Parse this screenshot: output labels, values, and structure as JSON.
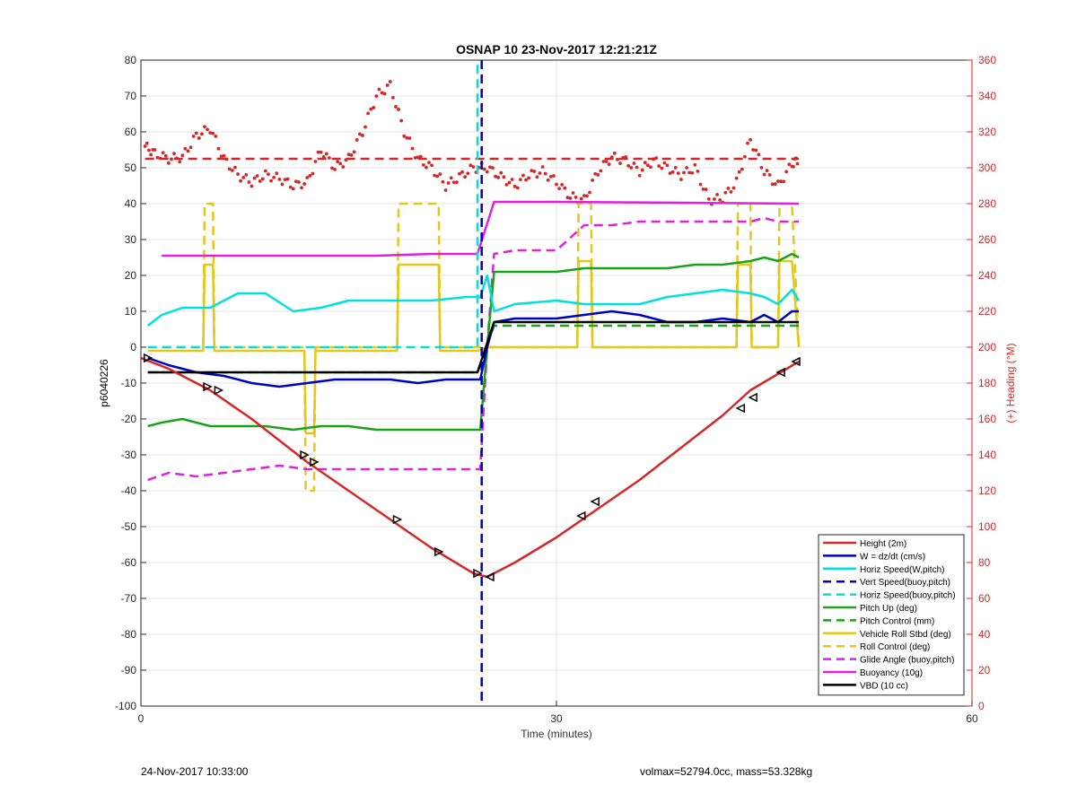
{
  "chart_data": {
    "type": "line",
    "title": "OSNAP 10 23-Nov-2017 12:21:21Z",
    "xlabel": "Time (minutes)",
    "ylabel": "p6040226",
    "y2label": "(+) Heading (°M)",
    "xlim": [
      0,
      60
    ],
    "ylim": [
      -100,
      80
    ],
    "y2lim": [
      0,
      360
    ],
    "xticks": [
      0,
      30,
      60
    ],
    "yticks": [
      -100,
      -90,
      -80,
      -70,
      -60,
      -50,
      -40,
      -30,
      -20,
      -10,
      0,
      10,
      20,
      30,
      40,
      50,
      60,
      70,
      80
    ],
    "y2ticks": [
      0,
      20,
      40,
      60,
      80,
      100,
      120,
      140,
      160,
      180,
      200,
      220,
      240,
      260,
      280,
      300,
      320,
      340,
      360
    ],
    "grid": true,
    "legend_position": "bottom-right",
    "vline_x": 24.5,
    "series": [
      {
        "name": "Height (2m)",
        "color": "#d62728",
        "style": "solid",
        "x": [
          0,
          2,
          5,
          8,
          12,
          15,
          18,
          21,
          24,
          25,
          27,
          30,
          33,
          36,
          39,
          42,
          44,
          47.5
        ],
        "y": [
          -3,
          -6,
          -12,
          -20,
          -32,
          -40,
          -48,
          -56,
          -63,
          -64,
          -60,
          -53,
          -45,
          -37,
          -28,
          -19,
          -12,
          -4
        ]
      },
      {
        "name": "W = dz/dt (cm/s)",
        "color": "#0000c0",
        "style": "solid",
        "x": [
          0.5,
          2,
          4,
          6,
          8,
          10,
          12,
          14,
          16,
          18,
          20,
          22,
          23.5,
          24.5,
          25,
          25.5,
          27,
          30,
          32,
          34,
          36,
          38,
          40,
          42,
          44,
          45,
          46,
          47,
          47.5
        ],
        "y": [
          -3,
          -5,
          -7,
          -8,
          -10,
          -11,
          -10,
          -9,
          -9,
          -9,
          -10,
          -9,
          -9,
          -9,
          0,
          7,
          8,
          8,
          9,
          10,
          9,
          7,
          7,
          8,
          7,
          9,
          7,
          10,
          10
        ]
      },
      {
        "name": "Horiz Speed(W,pitch)",
        "color": "#00e0e0",
        "style": "solid",
        "x": [
          0.5,
          1.5,
          3,
          5,
          7,
          9,
          11,
          13,
          15,
          17,
          19,
          21,
          23.5,
          24.5,
          25,
          25.5,
          27,
          30,
          32,
          34,
          36,
          38,
          40,
          42,
          44,
          45,
          46,
          47,
          47.5
        ],
        "y": [
          6,
          9,
          11,
          11,
          15,
          15,
          10,
          11,
          13,
          13,
          13,
          13,
          14,
          14,
          20,
          10,
          12,
          13,
          12,
          12,
          12,
          14,
          15,
          16,
          15,
          14,
          12,
          16,
          13
        ]
      },
      {
        "name": "Vert Speed(buoy,pitch)",
        "color": "#0000c0",
        "style": "dashed",
        "x": [
          24.6,
          24.6
        ],
        "y": [
          80,
          -100
        ]
      },
      {
        "name": "Horiz Speed(buoy,pitch)",
        "color": "#00e0e0",
        "style": "dashed",
        "x": [
          0.5,
          24.3,
          24.3
        ],
        "y": [
          0,
          0,
          80
        ]
      },
      {
        "name": "Pitch Up (deg)",
        "color": "#1aa31a",
        "style": "solid",
        "x": [
          0.5,
          1.5,
          3,
          5,
          7,
          9,
          11,
          13,
          15,
          17,
          19,
          21,
          23.5,
          24.5,
          25,
          25.5,
          27,
          30,
          32,
          34,
          36,
          38,
          40,
          42,
          44,
          45,
          46,
          47,
          47.5
        ],
        "y": [
          -22,
          -21,
          -20,
          -22,
          -22,
          -22,
          -23,
          -22,
          -22,
          -23,
          -23,
          -23,
          -23,
          -23,
          0,
          21,
          21,
          21,
          22,
          22,
          22,
          22,
          23,
          23,
          24,
          25,
          24,
          26,
          25
        ]
      },
      {
        "name": "Pitch Control (mm)",
        "color": "#1aa31a",
        "style": "dashed",
        "x": [
          0.5,
          24.3,
          25.5,
          47.5
        ],
        "y": [
          -7,
          -7,
          6,
          6
        ]
      },
      {
        "name": "Vehicle Roll Stbd (deg)",
        "color": "#e6c619",
        "style": "solid",
        "x": [
          0.5,
          4.5,
          4.6,
          5.2,
          5.3,
          11.8,
          11.9,
          12.5,
          12.6,
          18.5,
          18.6,
          21.5,
          21.6,
          24.3,
          25,
          31.5,
          31.6,
          32.5,
          32.6,
          43,
          43.1,
          44,
          44.1,
          46,
          46.1,
          47,
          47.5
        ],
        "y": [
          -1,
          -1,
          23,
          23,
          -1,
          -1,
          -24,
          -24,
          -1,
          -1,
          23,
          23,
          -1,
          -1,
          0,
          0,
          24,
          24,
          0,
          0,
          23,
          23,
          0,
          0,
          24,
          24,
          0
        ]
      },
      {
        "name": "Roll Control (deg)",
        "color": "#e6c619",
        "style": "dashed",
        "x": [
          0.5,
          4.5,
          4.6,
          5.2,
          5.3,
          11.8,
          11.9,
          12.5,
          12.6,
          18.5,
          18.6,
          21.5,
          21.6,
          24.3,
          25,
          31.5,
          31.6,
          32.5,
          32.6,
          43,
          43.1,
          44,
          44.1,
          46,
          46.1,
          47,
          47.5
        ],
        "y": [
          0,
          0,
          40,
          40,
          0,
          0,
          -40,
          -40,
          0,
          0,
          40,
          40,
          0,
          0,
          0,
          0,
          40,
          40,
          0,
          0,
          40,
          40,
          0,
          0,
          40,
          40,
          0
        ]
      },
      {
        "name": "Glide Angle (buoy,pitch)",
        "color": "#e020e0",
        "style": "dashed",
        "x": [
          0.5,
          2,
          4,
          6,
          8,
          10,
          12,
          14,
          16,
          18,
          20,
          22,
          23.5,
          24.5,
          25,
          25.5,
          27,
          30,
          32,
          34,
          36,
          38,
          40,
          42,
          44,
          45,
          46,
          47,
          47.5
        ],
        "y": [
          -37,
          -35,
          -36,
          -35,
          -34,
          -33,
          -34,
          -34,
          -34,
          -34,
          -34,
          -34,
          -34,
          -34,
          0,
          26,
          27,
          27,
          34,
          34,
          35,
          35,
          35,
          35,
          35,
          36,
          35,
          35,
          35
        ]
      },
      {
        "name": "Buoyancy (10g)",
        "color": "#e020e0",
        "style": "solid",
        "x": [
          1.5,
          17,
          21,
          24.3,
          25.5,
          30,
          47.5
        ],
        "y": [
          25.5,
          25.5,
          26,
          26,
          40.5,
          40.5,
          40
        ]
      },
      {
        "name": "VBD (10 cc)",
        "color": "#000000",
        "style": "solid",
        "x": [
          0.5,
          24.3,
          25.5,
          47.5
        ],
        "y": [
          -7,
          -7,
          7,
          7
        ]
      }
    ],
    "heading": {
      "color": "#d62728",
      "mean_line_y2": 305,
      "x": [
        0.3,
        1,
        2,
        3,
        4,
        5,
        6,
        7,
        8,
        9,
        10,
        11,
        12,
        13,
        14,
        15,
        16,
        17,
        18,
        19,
        20,
        21,
        22,
        23,
        24,
        25,
        26,
        27,
        28,
        29,
        30,
        31,
        32,
        33,
        34,
        35,
        36,
        37,
        38,
        39,
        40,
        41,
        42,
        43,
        44,
        45,
        46,
        47,
        47.5
      ],
      "y2": [
        312,
        308,
        305,
        306,
        318,
        322,
        305,
        296,
        292,
        296,
        294,
        290,
        292,
        310,
        300,
        305,
        320,
        340,
        346,
        320,
        305,
        300,
        290,
        295,
        300,
        300,
        295,
        290,
        296,
        298,
        292,
        284,
        282,
        298,
        306,
        304,
        298,
        304,
        300,
        296,
        300,
        282,
        283,
        292,
        316,
        298,
        290,
        302,
        305
      ]
    },
    "markers": {
      "x": [
        0.5,
        4.8,
        5.6,
        11.8,
        12.5,
        18.5,
        21.5,
        24.3,
        25.2,
        31.8,
        32.8,
        43.3,
        44.2,
        46.2,
        47.3
      ],
      "y": [
        -3,
        -11,
        -12,
        -30,
        -32,
        -48,
        -57,
        -63,
        -64,
        -47,
        -43,
        -17,
        -14,
        -7,
        -4
      ]
    }
  },
  "footer": {
    "left": "24-Nov-2017 10:33:00",
    "right": "volmax=52794.0cc, mass=53.328kg"
  }
}
